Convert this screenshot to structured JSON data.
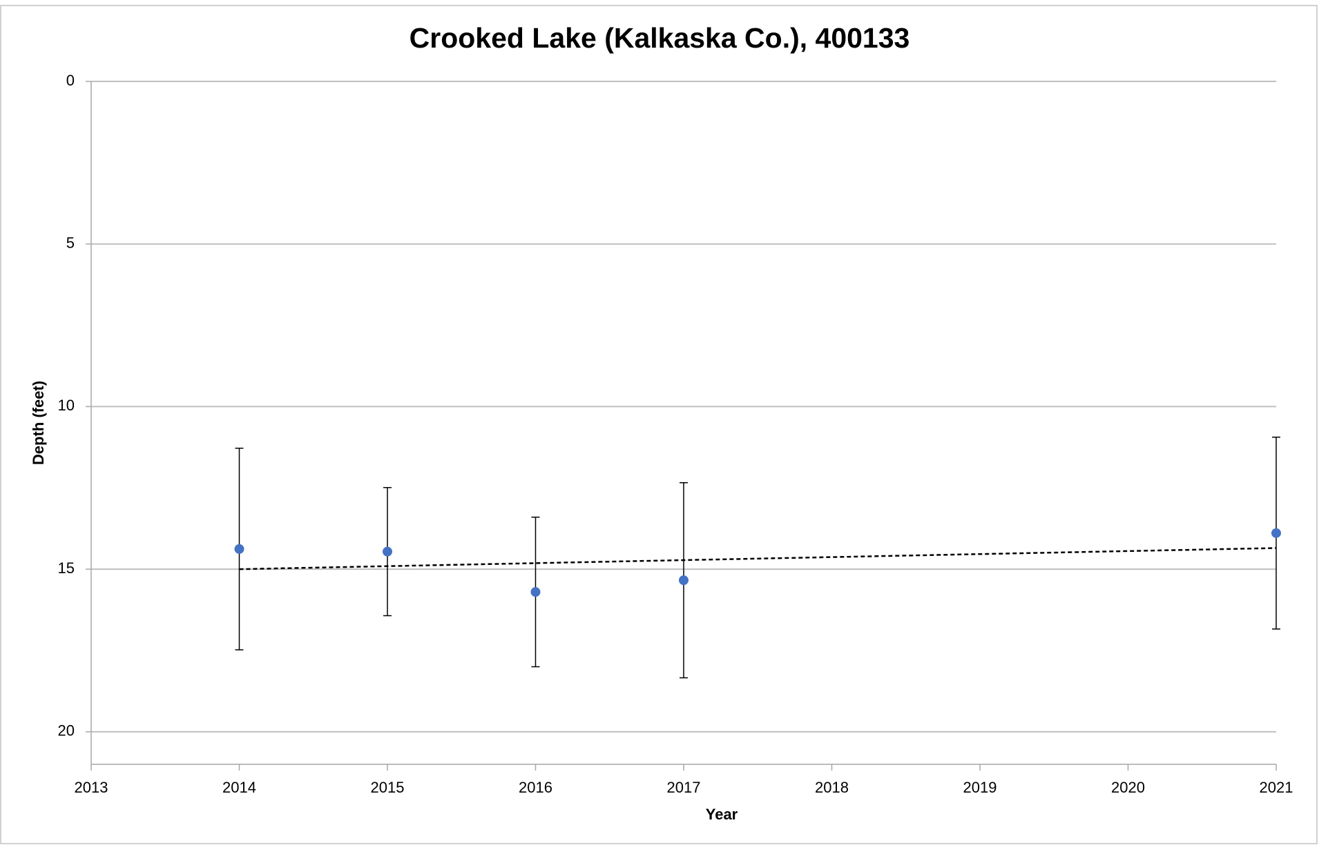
{
  "chart_data": {
    "type": "scatter",
    "title": "Crooked Lake (Kalkaska Co.), 400133",
    "x_label": "Year",
    "y_label": "Depth (feet)",
    "x": [
      2014,
      2015,
      2016,
      2017,
      2021
    ],
    "values": [
      14.38,
      14.46,
      15.7,
      15.34,
      13.89
    ],
    "errors": [
      3.1,
      1.97,
      2.3,
      3.0,
      2.95
    ],
    "color": "#4472c4",
    "trendline": {
      "x": [
        2014,
        2021
      ],
      "values": [
        15.0,
        14.35
      ],
      "color": "#000000",
      "dashed": true
    },
    "xlim": [
      2013,
      2021
    ],
    "xticks": [
      2013,
      2014,
      2015,
      2016,
      2017,
      2018,
      2019,
      2020,
      2021
    ],
    "ylim": [
      0,
      21
    ],
    "yticks": [
      0,
      5,
      10,
      15,
      20
    ],
    "y_inverted": true,
    "grid": true
  }
}
